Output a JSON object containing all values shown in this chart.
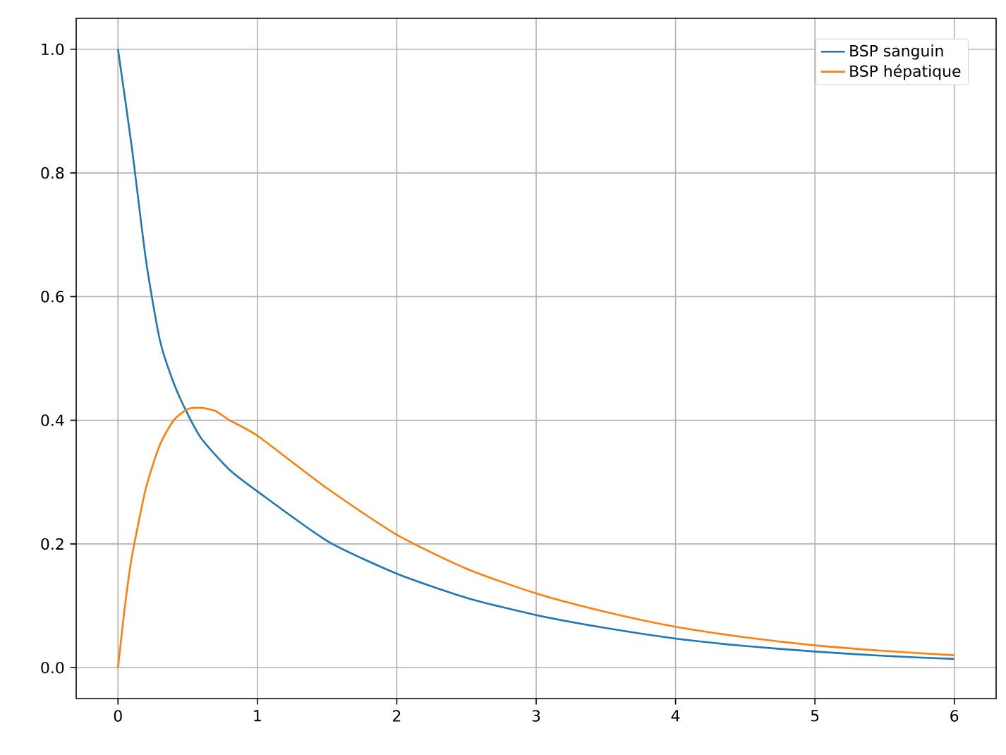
{
  "chart_data": {
    "type": "line",
    "xlim": [
      -0.3,
      6.3
    ],
    "ylim": [
      -0.05,
      1.05
    ],
    "xticks": [
      0,
      1,
      2,
      3,
      4,
      5,
      6
    ],
    "yticks": [
      {
        "value": 0,
        "label": "0.0"
      },
      {
        "value": 0.2,
        "label": "0.2"
      },
      {
        "value": 0.4,
        "label": "0.4"
      },
      {
        "value": 0.6,
        "label": "0.6"
      },
      {
        "value": 0.8,
        "label": "0.8"
      },
      {
        "value": 1,
        "label": "1.0"
      }
    ],
    "grid": true,
    "legend": "top right",
    "marker": "none",
    "line_style": "solid",
    "series": [
      {
        "name": "BSP sanguin",
        "color": "#1f77b4",
        "x": [
          0,
          0.1,
          0.2,
          0.3,
          0.4,
          0.5,
          0.6,
          0.8,
          1.0,
          1.5,
          2.0,
          2.5,
          3.0,
          3.5,
          4.0,
          4.5,
          5.0,
          5.5,
          6.0
        ],
        "values": [
          1.0,
          0.84,
          0.66,
          0.53,
          0.46,
          0.41,
          0.37,
          0.32,
          0.285,
          0.205,
          0.152,
          0.113,
          0.085,
          0.064,
          0.047,
          0.035,
          0.026,
          0.019,
          0.014
        ]
      },
      {
        "name": "BSP hépatique",
        "color": "#ff7f0e",
        "x": [
          0,
          0.05,
          0.1,
          0.2,
          0.3,
          0.4,
          0.5,
          0.6,
          0.7,
          0.8,
          1.0,
          1.5,
          2.0,
          2.5,
          3.0,
          3.5,
          4.0,
          4.5,
          5.0,
          5.5,
          6.0
        ],
        "values": [
          0,
          0.1,
          0.18,
          0.29,
          0.36,
          0.4,
          0.418,
          0.42,
          0.415,
          0.4,
          0.375,
          0.29,
          0.215,
          0.16,
          0.12,
          0.09,
          0.066,
          0.049,
          0.036,
          0.027,
          0.02
        ]
      }
    ]
  }
}
